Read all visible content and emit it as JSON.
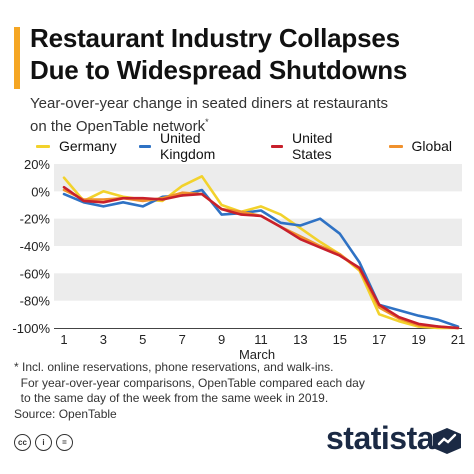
{
  "title_line1": "Restaurant Industry Collapses",
  "title_line2": "Due to Widespread Shutdowns",
  "subtitle_line1": "Year-over-year change in seated diners at restaurants",
  "subtitle_line2": "on the OpenTable network",
  "subtitle_marker": "*",
  "colors": {
    "accent": "#f5a623",
    "germany": "#f2d22c",
    "united_kingdom": "#2f72c4",
    "united_states": "#c8202b",
    "global": "#f0912d",
    "grid_band": "#ececec",
    "brand": "#1b2a44"
  },
  "footnote": [
    "* Incl. online reservations, phone reservations, and walk-ins.",
    "  For year-over-year comparisons, OpenTable compared each day",
    "  to the same day of the week from the same week in 2019.",
    "Source: OpenTable"
  ],
  "footer": {
    "license_icons": [
      "cc-icon",
      "person-icon",
      "equals-icon"
    ],
    "license_labels": [
      "cc",
      "i",
      "="
    ],
    "brand": "statista"
  },
  "chart_data": {
    "type": "line",
    "xlabel": "March",
    "ylabel": "",
    "x": [
      1,
      2,
      3,
      4,
      5,
      6,
      7,
      8,
      9,
      10,
      11,
      12,
      13,
      14,
      15,
      16,
      17,
      18,
      19,
      20,
      21
    ],
    "xticks": [
      "1",
      "3",
      "5",
      "7",
      "9",
      "11",
      "13",
      "15",
      "17",
      "19",
      "21"
    ],
    "xtick_values": [
      1,
      3,
      5,
      7,
      9,
      11,
      13,
      15,
      17,
      19,
      21
    ],
    "yticks": [
      "20%",
      "0%",
      "-20%",
      "-40%",
      "-60%",
      "-80%",
      "-100%"
    ],
    "ytick_values": [
      20,
      0,
      -20,
      -40,
      -60,
      -80,
      -100
    ],
    "ylim": [
      -100,
      20
    ],
    "xlim": [
      1,
      21
    ],
    "grid": "alternating horizontal bands",
    "legend_position": "top",
    "series": [
      {
        "name": "Germany",
        "color_key": "germany",
        "values": [
          10,
          -7,
          0,
          -4,
          -6,
          -7,
          4,
          11,
          -10,
          -15,
          -11,
          -17,
          -27,
          -37,
          -46,
          -58,
          -90,
          -95,
          -99,
          -100,
          -100
        ]
      },
      {
        "name": "United Kingdom",
        "color_key": "united_kingdom",
        "values": [
          -2,
          -8,
          -11,
          -8,
          -11,
          -4,
          -3,
          1,
          -17,
          -16,
          -14,
          -23,
          -25,
          -20,
          -31,
          -52,
          -83,
          -87,
          -91,
          -94,
          -99
        ]
      },
      {
        "name": "United States",
        "color_key": "united_states",
        "values": [
          3,
          -7,
          -8,
          -5,
          -5,
          -6,
          -3,
          -2,
          -13,
          -17,
          -18,
          -26,
          -35,
          -41,
          -47,
          -56,
          -83,
          -92,
          -97,
          -99,
          -100
        ]
      },
      {
        "name": "Global",
        "color_key": "global",
        "values": [
          1,
          -6,
          -6,
          -5,
          -7,
          -5,
          -1,
          -2,
          -13,
          -15,
          -18,
          -26,
          -33,
          -40,
          -46,
          -57,
          -85,
          -93,
          -98,
          -99,
          -100
        ]
      }
    ]
  }
}
